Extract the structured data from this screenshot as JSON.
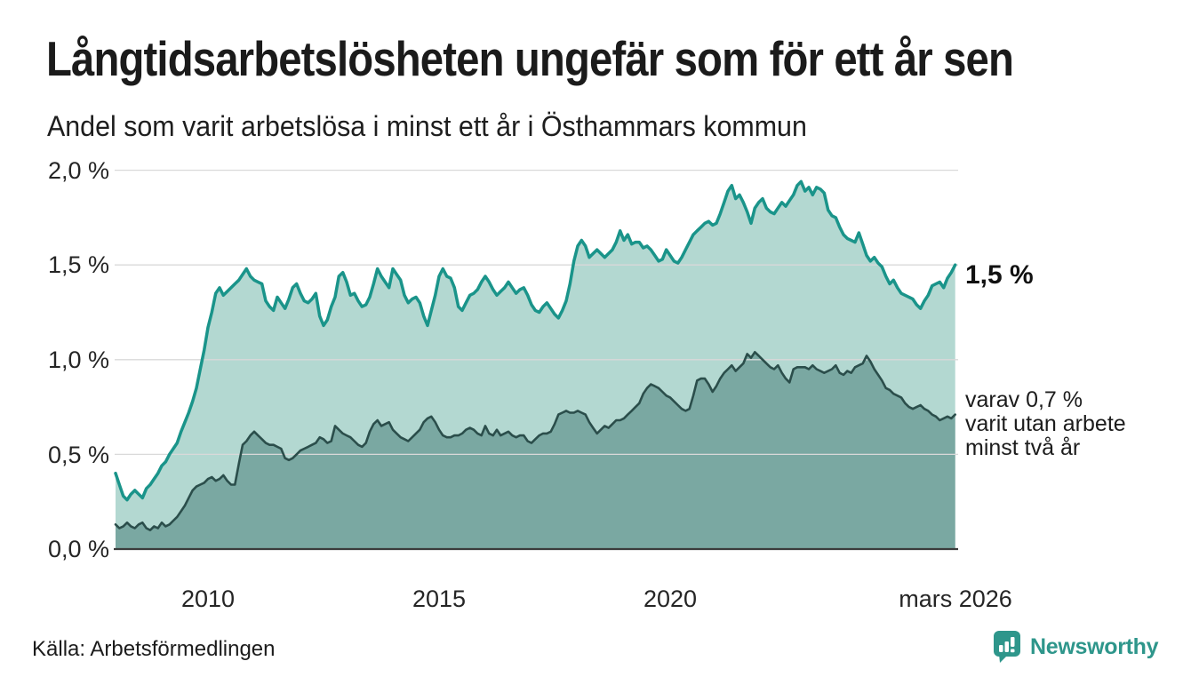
{
  "header": {
    "title": "Långtidsarbetslösheten ungefär som för ett år sen",
    "subtitle": "Andel som varit arbetslösa i minst ett år i Östhammars kommun"
  },
  "chart_data": {
    "type": "area",
    "title": "Långtidsarbetslösheten ungefär som för ett år sen",
    "subtitle": "Andel som varit arbetslösa i minst ett år i Östhammars kommun",
    "unit": "%",
    "ylim": [
      0.0,
      2.0
    ],
    "grid": true,
    "x_range": {
      "start": "2008-01",
      "end": "2026-03"
    },
    "x_step_months": 1,
    "y_ticks": [
      {
        "label": "2,0 %",
        "value": 2.0
      },
      {
        "label": "1,5 %",
        "value": 1.5
      },
      {
        "label": "1,0 %",
        "value": 1.0
      },
      {
        "label": "0,5 %",
        "value": 0.5
      },
      {
        "label": "0,0 %",
        "value": 0.0
      }
    ],
    "x_ticks": [
      {
        "label": "2010",
        "year": 2010.0
      },
      {
        "label": "2015",
        "year": 2015.0
      },
      {
        "label": "2020",
        "year": 2020.0
      },
      {
        "label": "mars 2026",
        "year": 2026.17
      }
    ],
    "colors": {
      "grid": "#d9d9d9",
      "baseline": "#3b3b3b",
      "text": "#1b1b1b",
      "accent": "#1a948a"
    },
    "series": [
      {
        "name": "Arbetslösa minst ett år",
        "line_color": "#1a948a",
        "fill_color": "#b3d8d1",
        "line_width": 3.5,
        "end_value": 1.5,
        "values": [
          0.4,
          0.34,
          0.28,
          0.26,
          0.29,
          0.31,
          0.29,
          0.27,
          0.32,
          0.34,
          0.37,
          0.4,
          0.44,
          0.46,
          0.5,
          0.53,
          0.56,
          0.62,
          0.67,
          0.72,
          0.78,
          0.85,
          0.95,
          1.05,
          1.17,
          1.25,
          1.35,
          1.38,
          1.34,
          1.36,
          1.38,
          1.4,
          1.42,
          1.45,
          1.48,
          1.44,
          1.42,
          1.41,
          1.4,
          1.31,
          1.28,
          1.26,
          1.33,
          1.3,
          1.27,
          1.32,
          1.38,
          1.4,
          1.35,
          1.31,
          1.3,
          1.32,
          1.35,
          1.23,
          1.18,
          1.21,
          1.28,
          1.33,
          1.44,
          1.46,
          1.41,
          1.34,
          1.35,
          1.31,
          1.28,
          1.29,
          1.33,
          1.4,
          1.48,
          1.44,
          1.41,
          1.38,
          1.48,
          1.45,
          1.42,
          1.34,
          1.3,
          1.32,
          1.33,
          1.3,
          1.23,
          1.18,
          1.26,
          1.34,
          1.44,
          1.48,
          1.44,
          1.43,
          1.38,
          1.28,
          1.26,
          1.3,
          1.34,
          1.35,
          1.37,
          1.41,
          1.44,
          1.41,
          1.37,
          1.34,
          1.36,
          1.38,
          1.41,
          1.38,
          1.35,
          1.37,
          1.38,
          1.34,
          1.29,
          1.26,
          1.25,
          1.28,
          1.3,
          1.27,
          1.24,
          1.22,
          1.26,
          1.31,
          1.4,
          1.52,
          1.6,
          1.63,
          1.6,
          1.54,
          1.56,
          1.58,
          1.56,
          1.54,
          1.56,
          1.58,
          1.62,
          1.68,
          1.63,
          1.66,
          1.61,
          1.62,
          1.62,
          1.59,
          1.6,
          1.58,
          1.55,
          1.52,
          1.53,
          1.58,
          1.55,
          1.52,
          1.51,
          1.54,
          1.58,
          1.62,
          1.66,
          1.68,
          1.7,
          1.72,
          1.73,
          1.71,
          1.72,
          1.77,
          1.83,
          1.89,
          1.92,
          1.85,
          1.87,
          1.83,
          1.78,
          1.72,
          1.8,
          1.83,
          1.85,
          1.8,
          1.78,
          1.77,
          1.8,
          1.83,
          1.81,
          1.84,
          1.87,
          1.92,
          1.94,
          1.89,
          1.91,
          1.87,
          1.91,
          1.9,
          1.88,
          1.79,
          1.76,
          1.75,
          1.7,
          1.66,
          1.64,
          1.63,
          1.62,
          1.67,
          1.61,
          1.55,
          1.52,
          1.54,
          1.51,
          1.49,
          1.44,
          1.4,
          1.42,
          1.38,
          1.35,
          1.34,
          1.33,
          1.32,
          1.29,
          1.27,
          1.31,
          1.34,
          1.39,
          1.4,
          1.41,
          1.38,
          1.43,
          1.46,
          1.5
        ]
      },
      {
        "name": "Arbetslösa minst två år",
        "line_color": "#2b4e4b",
        "fill_color": "#7aa8a2",
        "line_width": 2.6,
        "end_value": 0.7,
        "values": [
          0.13,
          0.11,
          0.12,
          0.14,
          0.12,
          0.11,
          0.13,
          0.14,
          0.11,
          0.1,
          0.12,
          0.11,
          0.14,
          0.12,
          0.13,
          0.15,
          0.17,
          0.2,
          0.23,
          0.27,
          0.31,
          0.33,
          0.34,
          0.35,
          0.37,
          0.38,
          0.36,
          0.37,
          0.39,
          0.36,
          0.34,
          0.34,
          0.45,
          0.55,
          0.57,
          0.6,
          0.62,
          0.6,
          0.58,
          0.56,
          0.55,
          0.55,
          0.54,
          0.53,
          0.48,
          0.47,
          0.48,
          0.5,
          0.52,
          0.53,
          0.54,
          0.55,
          0.56,
          0.59,
          0.58,
          0.56,
          0.57,
          0.65,
          0.63,
          0.61,
          0.6,
          0.59,
          0.57,
          0.55,
          0.54,
          0.56,
          0.62,
          0.66,
          0.68,
          0.65,
          0.66,
          0.67,
          0.63,
          0.61,
          0.59,
          0.58,
          0.57,
          0.59,
          0.61,
          0.63,
          0.67,
          0.69,
          0.7,
          0.67,
          0.63,
          0.6,
          0.59,
          0.59,
          0.6,
          0.6,
          0.61,
          0.63,
          0.64,
          0.63,
          0.61,
          0.6,
          0.65,
          0.61,
          0.6,
          0.63,
          0.6,
          0.61,
          0.62,
          0.6,
          0.59,
          0.6,
          0.6,
          0.57,
          0.56,
          0.58,
          0.6,
          0.61,
          0.61,
          0.62,
          0.66,
          0.71,
          0.72,
          0.73,
          0.72,
          0.72,
          0.73,
          0.72,
          0.71,
          0.67,
          0.64,
          0.61,
          0.63,
          0.65,
          0.64,
          0.66,
          0.68,
          0.68,
          0.69,
          0.71,
          0.73,
          0.75,
          0.77,
          0.82,
          0.85,
          0.87,
          0.86,
          0.85,
          0.83,
          0.81,
          0.8,
          0.78,
          0.76,
          0.74,
          0.73,
          0.74,
          0.81,
          0.89,
          0.9,
          0.9,
          0.87,
          0.83,
          0.86,
          0.9,
          0.93,
          0.95,
          0.97,
          0.94,
          0.96,
          0.98,
          1.03,
          1.01,
          1.04,
          1.02,
          1.0,
          0.98,
          0.96,
          0.95,
          0.97,
          0.93,
          0.9,
          0.88,
          0.95,
          0.96,
          0.96,
          0.96,
          0.95,
          0.97,
          0.95,
          0.94,
          0.93,
          0.94,
          0.95,
          0.97,
          0.93,
          0.92,
          0.94,
          0.93,
          0.96,
          0.97,
          0.98,
          1.02,
          0.99,
          0.95,
          0.92,
          0.89,
          0.85,
          0.84,
          0.82,
          0.81,
          0.8,
          0.77,
          0.75,
          0.74,
          0.75,
          0.76,
          0.74,
          0.73,
          0.71,
          0.7,
          0.68,
          0.69,
          0.7,
          0.69,
          0.71
        ]
      }
    ],
    "annotations": {
      "end_label": "1,5 %",
      "detail_lines": [
        "varav 0,7 %",
        "varit utan arbete",
        "minst två år"
      ]
    }
  },
  "footer": {
    "source": "Källa: Arbetsförmedlingen",
    "brand": "Newsworthy"
  }
}
